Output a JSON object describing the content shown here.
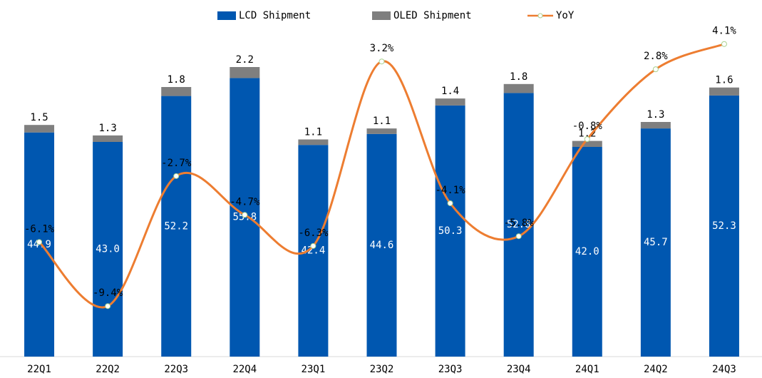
{
  "chart_data": {
    "type": "bar",
    "stacked": true,
    "categories": [
      "22Q1",
      "22Q2",
      "22Q3",
      "22Q4",
      "23Q1",
      "23Q2",
      "23Q3",
      "23Q4",
      "24Q1",
      "24Q2",
      "24Q3"
    ],
    "series": [
      {
        "name": "LCD Shipment",
        "color": "#0057b0",
        "values": [
          44.9,
          43.0,
          52.2,
          55.8,
          42.4,
          44.6,
          50.3,
          52.8,
          42.0,
          45.7,
          52.3
        ]
      },
      {
        "name": "OLED Shipment",
        "color": "#7f7f7f",
        "values": [
          1.5,
          1.3,
          1.8,
          2.2,
          1.1,
          1.1,
          1.4,
          1.8,
          1.2,
          1.3,
          1.6
        ]
      },
      {
        "name": "YoY",
        "type": "line",
        "axis": "y2",
        "color": "#ed7d31",
        "values": [
          -6.1,
          -9.4,
          -2.7,
          -4.7,
          -6.3,
          3.2,
          -4.1,
          -5.8,
          -0.8,
          2.8,
          4.1
        ],
        "value_labels": [
          "-6.1%",
          "-9.4%",
          "-2.7%",
          "-4.7%",
          "-6.3%",
          "3.2%",
          "-4.1%",
          "-5.8%",
          "-0.8%",
          "2.8%",
          "4.1%"
        ]
      }
    ],
    "ylim": [
      0,
      70
    ],
    "y2lim": [
      -12,
      6
    ]
  }
}
